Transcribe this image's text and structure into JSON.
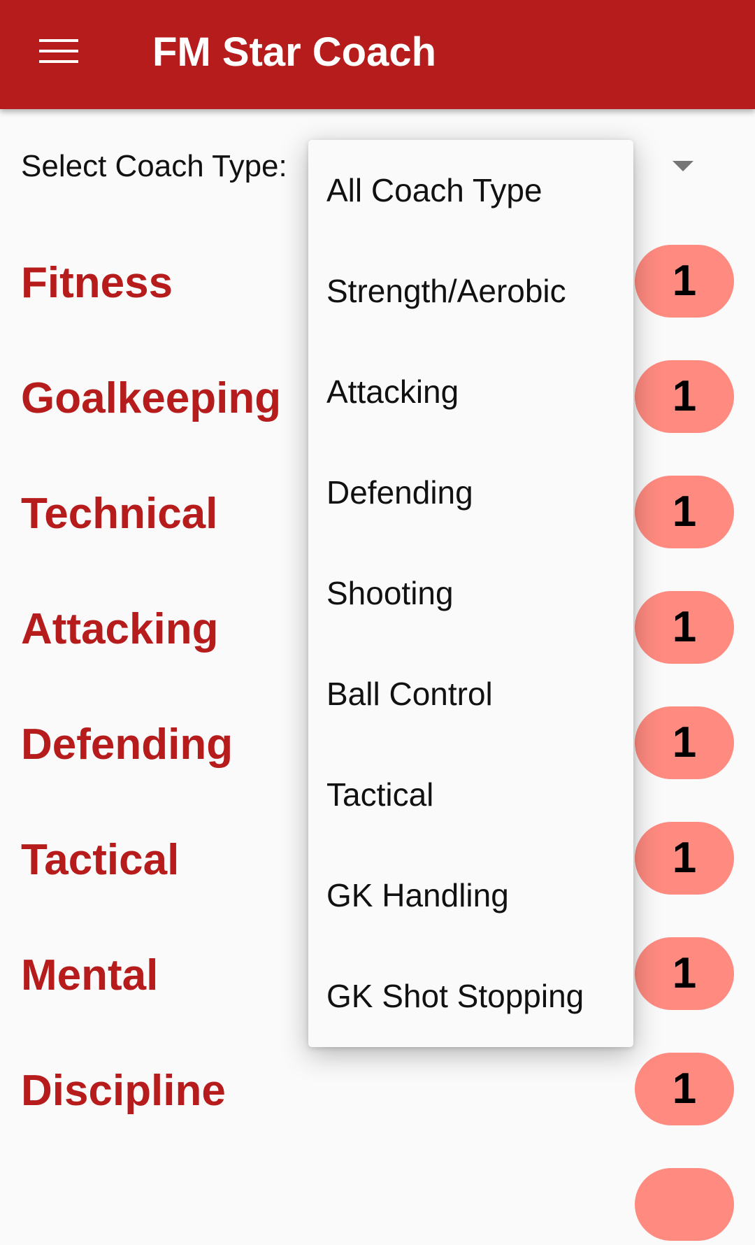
{
  "app_bar": {
    "title": "FM Star Coach",
    "menu_icon": "hamburger-menu-icon"
  },
  "filter": {
    "label": "Select Coach Type:",
    "dropdown_icon": "dropdown-arrow-icon"
  },
  "dropdown_options": [
    "All Coach Type",
    "Strength/Aerobic",
    "Attacking",
    "Defending",
    "Shooting",
    "Ball Control",
    "Tactical",
    "GK Handling",
    "GK Shot Stopping"
  ],
  "categories": [
    {
      "name": "Fitness",
      "count": "1"
    },
    {
      "name": "Goalkeeping",
      "count": "1"
    },
    {
      "name": "Technical",
      "count": "1"
    },
    {
      "name": "Attacking",
      "count": "1"
    },
    {
      "name": "Defending",
      "count": "1"
    },
    {
      "name": "Tactical",
      "count": "1"
    },
    {
      "name": "Mental",
      "count": "1"
    },
    {
      "name": "Discipline",
      "count": "1"
    }
  ],
  "colors": {
    "primary": "#b71c1c",
    "badge": "#ff8a80",
    "background": "#fafafa"
  }
}
